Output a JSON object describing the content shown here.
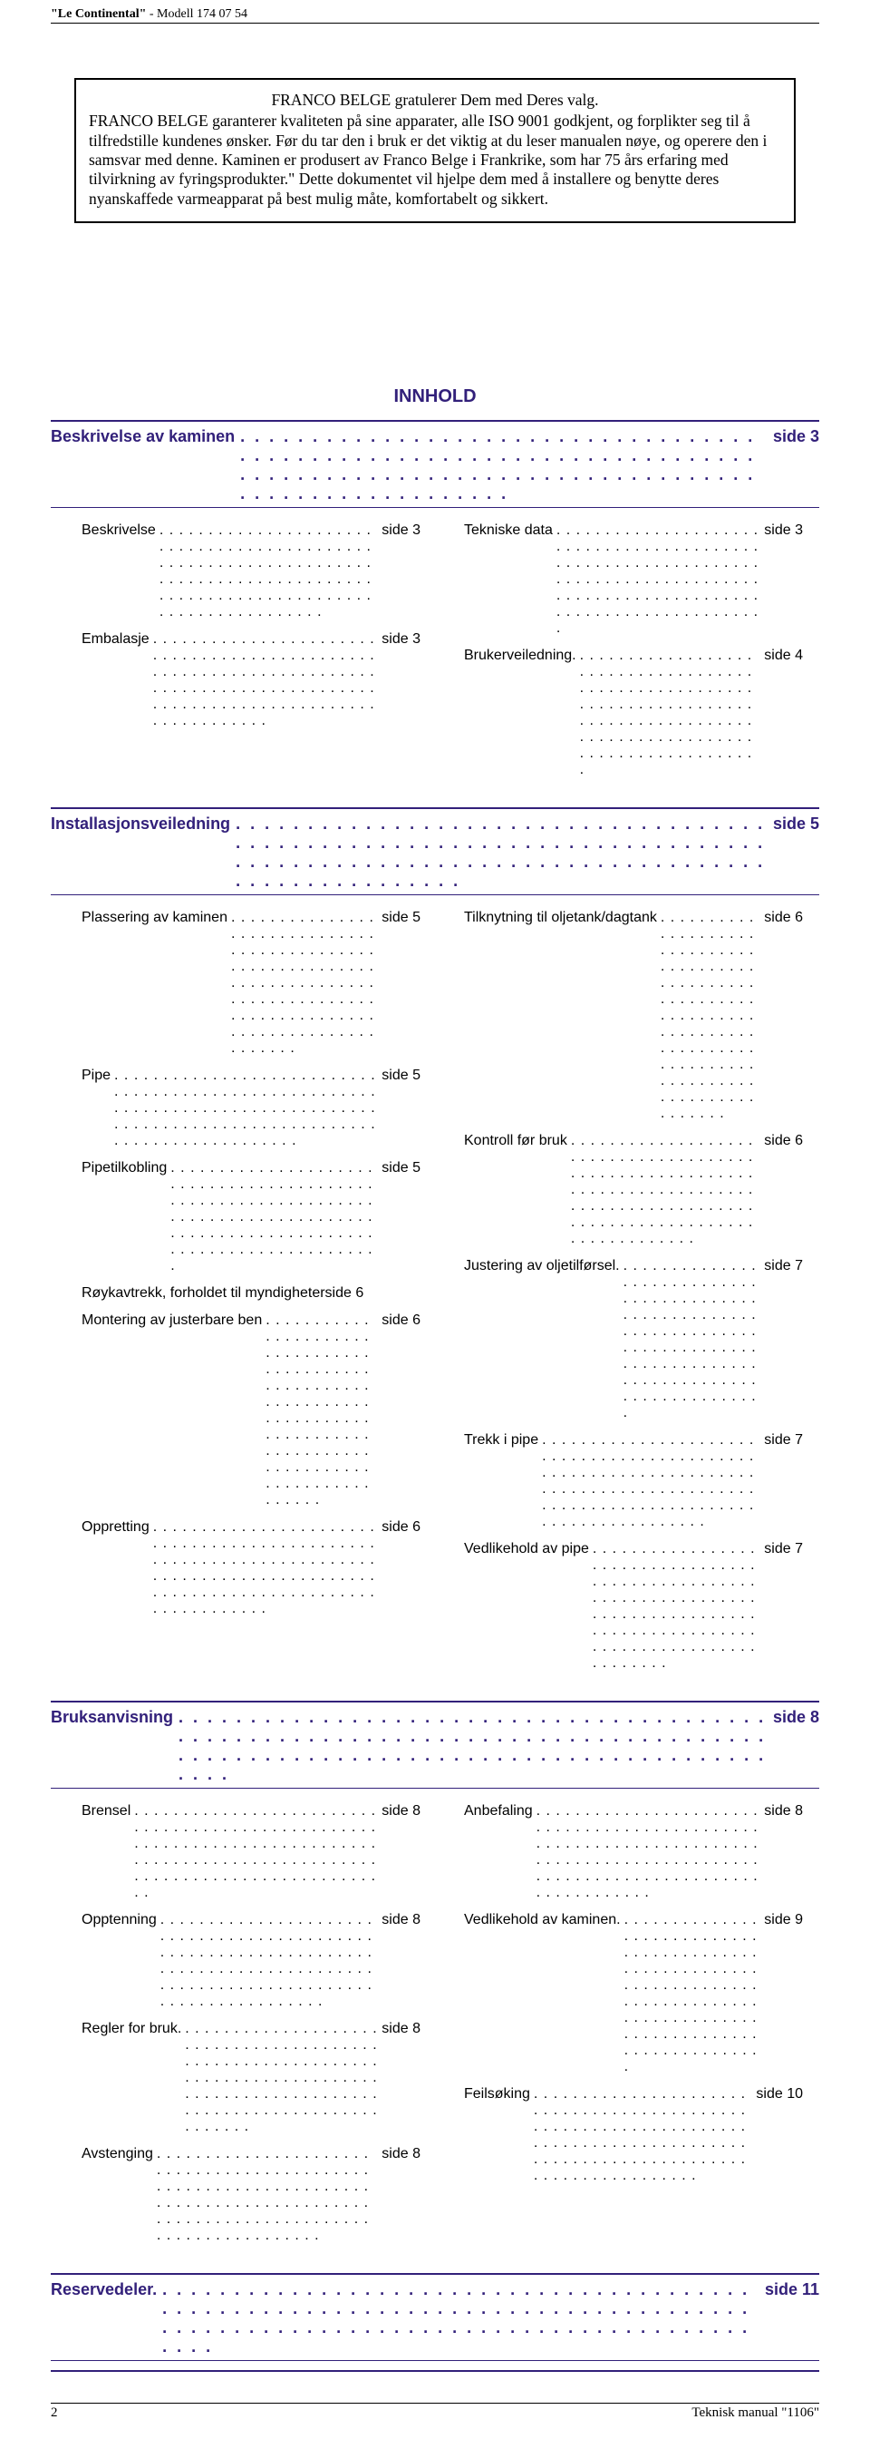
{
  "colors": {
    "text": "#000000",
    "accent": "#32207a",
    "background": "#ffffff"
  },
  "header": {
    "title_quoted": "\"Le Continental\"",
    "model": " - Modell 174 07 54"
  },
  "intro": {
    "line1": "FRANCO BELGE gratulerer Dem med Deres valg.",
    "body": "FRANCO BELGE garanterer kvaliteten på sine apparater, alle ISO 9001 godkjent, og forplikter seg til å tilfredstille kundenes ønsker. Før du tar den i bruk er det viktig at du leser manualen nøye, og operere den i samsvar med denne. Kaminen er produsert av Franco Belge i Frankrike, som har 75 års erfaring med tilvirkning av fyringsprodukter.\" Dette dokumentet vil hjelpe dem med å installere og benytte deres nyanskaffede varmeapparat på best mulig måte, komfortabelt og sikkert."
  },
  "toc": {
    "title": "INNHOLD",
    "sections": [
      {
        "label": "Beskrivelse av kaminen",
        "page": "side 3",
        "left": [
          {
            "label": "Beskrivelse",
            "page": "side 3"
          },
          {
            "label": "Embalasje",
            "page": "side 3"
          }
        ],
        "right": [
          {
            "label": "Tekniske data",
            "page": "side 3"
          },
          {
            "label": "Brukerveiledning.",
            "page": "side 4"
          }
        ]
      },
      {
        "label": "Installasjonsveiledning",
        "page": "side 5",
        "left": [
          {
            "label": "Plassering av kaminen",
            "page": "side 5"
          },
          {
            "label": "Pipe",
            "page": "side 5"
          },
          {
            "label": "Pipetilkobling",
            "page": "side 5"
          },
          {
            "label": "Røykavtrekk, forholdet til myndigheter",
            "page": "side 6",
            "nodots": true
          },
          {
            "label": "Montering av justerbare ben",
            "page": "side 6"
          },
          {
            "label": "Oppretting",
            "page": "side 6"
          }
        ],
        "right": [
          {
            "label": "Tilknytning til oljetank/dagtank",
            "page": "side 6"
          },
          {
            "label": "Kontroll før bruk",
            "page": "side 6"
          },
          {
            "label": "Justering av oljetilførsel.",
            "page": "side 7"
          },
          {
            "label": "Trekk i pipe",
            "page": "side 7"
          },
          {
            "label": "Vedlikehold av pipe",
            "page": "side 7"
          }
        ]
      },
      {
        "label": "Bruksanvisning",
        "page": "side 8",
        "left": [
          {
            "label": "Brensel",
            "page": "side 8"
          },
          {
            "label": "Opptenning",
            "page": "side 8"
          },
          {
            "label": "Regler for bruk.",
            "page": "side 8"
          },
          {
            "label": "Avstenging",
            "page": "side 8"
          }
        ],
        "right": [
          {
            "label": "Anbefaling",
            "page": "side 8"
          },
          {
            "label": "Vedlikehold av kaminen.",
            "page": "side 9"
          },
          {
            "label": "Feilsøking",
            "page": "side 10"
          }
        ]
      },
      {
        "label": "Reservedeler.",
        "page": "side 11",
        "left": [],
        "right": []
      }
    ]
  },
  "footer": {
    "page_num": "2",
    "manual": "Teknisk manual \"1106\""
  }
}
